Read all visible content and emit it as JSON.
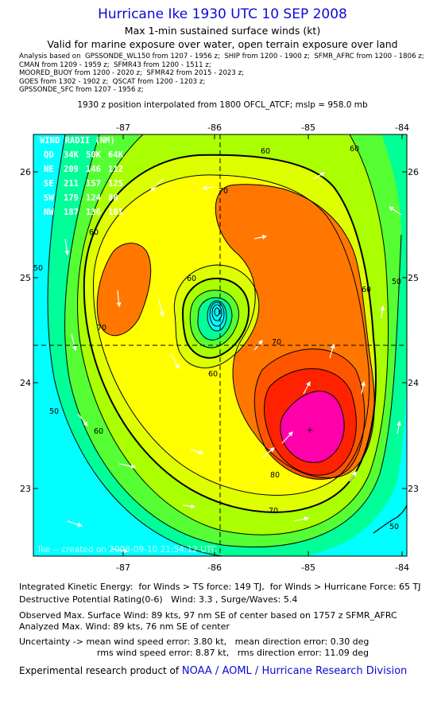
{
  "header": {
    "title": "Hurricane Ike 1930 UTC 10 SEP 2008",
    "subtitle": "Max 1-min sustained surface winds (kt)",
    "valid_line": "Valid for marine exposure over water, open terrain exposure over land",
    "sources": [
      "Analysis based on  GPSSONDE_WL150 from 1207 - 1956 z;  SHIP from 1200 - 1900 z;  SFMR_AFRC from 1200 - 1806 z;",
      "CMAN from 1209 - 1959 z;  SFMR43 from 1200 - 1511 z;",
      "MOORED_BUOY from 1200 - 2020 z;  SFMR42 from 2015 - 2023 z;",
      "GOES from 1302 - 1902 z;  QSCAT from 1200 - 1203 z;",
      "GPSSONDE_SFC from 1207 - 1956 z;"
    ],
    "position_line": "1930 z position interpolated from 1800 OFCL_ATCF; mslp = 958.0 mb"
  },
  "map": {
    "lon_ticks": [
      "-87",
      "-86",
      "-85",
      "-84"
    ],
    "lat_ticks": [
      "26",
      "25",
      "24",
      "23"
    ],
    "wind_radii": {
      "title": "WIND RADII (NM)",
      "rows": [
        {
          "quad": "QD",
          "v34": "34K",
          "v50": "50K",
          "v64": "64K"
        },
        {
          "quad": "NE",
          "v34": "209",
          "v50": "146",
          "v64": "112"
        },
        {
          "quad": "SE",
          "v34": "211",
          "v50": "157",
          "v64": "125"
        },
        {
          "quad": "SW",
          "v34": "179",
          "v50": "124",
          "v64": "88"
        },
        {
          "quad": "NW",
          "v34": "187",
          "v50": "136",
          "v64": "101"
        }
      ]
    },
    "contour_labels": [
      "60",
      "70",
      "60",
      "50",
      "70",
      "60",
      "70",
      "80",
      "60",
      "50",
      "60",
      "70",
      "60",
      "50",
      "60",
      "50"
    ],
    "credit": "Ike -- created on 2008-09-10 21:54:12 UTC",
    "colors": {
      "cyan": "#00ffff",
      "aqua_green": "#00ff99",
      "green": "#55ff33",
      "yellow_green": "#aaff00",
      "light_yellow": "#ddff00",
      "yellow": "#ffff00",
      "orange": "#ff7700",
      "dark_orange": "#ff5500",
      "red": "#ff2200",
      "magenta": "#ff00aa"
    }
  },
  "footer": {
    "ike_line": "Integrated Kinetic Energy:  for Winds > TS force: 149 TJ,  for Winds > Hurricane Force: 65 TJ",
    "dpr_line": "Destructive Potential Rating(0-6)   Wind: 3.3 , Surge/Waves: 5.4",
    "obs_line": "Observed Max. Surface Wind: 89 kts, 97 nm SE of center based on 1757 z SFMR_AFRC",
    "analyzed_line": "Analyzed Max. Wind: 89 kts, 76 nm SE of center",
    "uncert_line1": "Uncertainty -> mean wind speed error: 3.80 kt,   mean direction error: 0.30 deg",
    "uncert_line2": "                            rms wind speed error: 8.87 kt,   rms direction error: 11.09 deg",
    "credit_prefix": "Experimental research product of ",
    "credit_org": "NOAA / AOML / Hurricane Research Division"
  }
}
